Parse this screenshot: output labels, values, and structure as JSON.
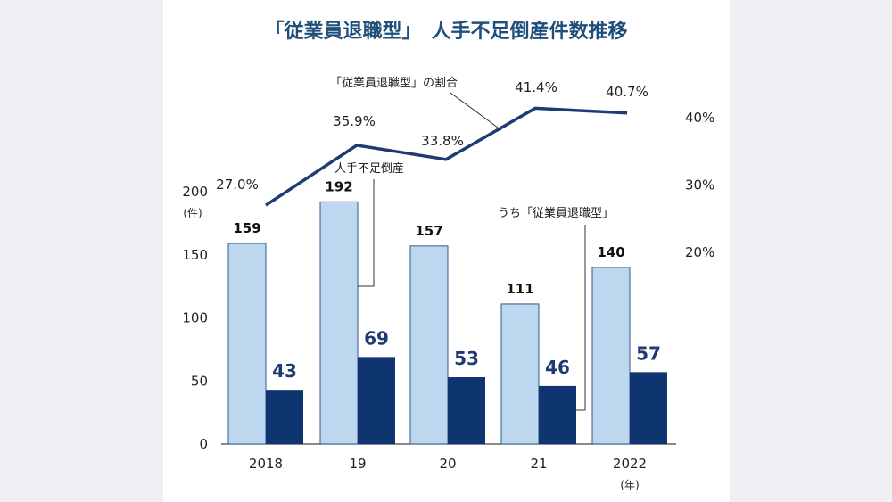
{
  "chart_data": {
    "type": "bar",
    "title": "「従業員退職型」　人手不足倒産件数推移",
    "categories": [
      "2018",
      "19",
      "20",
      "21",
      "2022"
    ],
    "x_unit": "(年)",
    "y_unit": "(件)",
    "ylim": [
      0,
      200
    ],
    "y_ticks": [
      0,
      50,
      100,
      150,
      200
    ],
    "series": [
      {
        "name": "人手不足倒産",
        "values": [
          159,
          192,
          157,
          111,
          140
        ],
        "color": "#bdd7ee"
      },
      {
        "name": "うち「従業員退職型」",
        "values": [
          43,
          69,
          53,
          46,
          57
        ],
        "color": "#0f3570"
      }
    ],
    "line": {
      "name": "「従業員退職型」の割合",
      "values": [
        27.0,
        35.9,
        33.8,
        41.4,
        40.7
      ],
      "labels": [
        "27.0%",
        "35.9%",
        "33.8%",
        "41.4%",
        "40.7%"
      ],
      "color": "#1f3b73",
      "ylim": [
        0,
        50
      ],
      "ticks": [
        "20%",
        "30%",
        "40%"
      ],
      "tick_values": [
        20,
        30,
        40
      ]
    },
    "grid": false
  }
}
